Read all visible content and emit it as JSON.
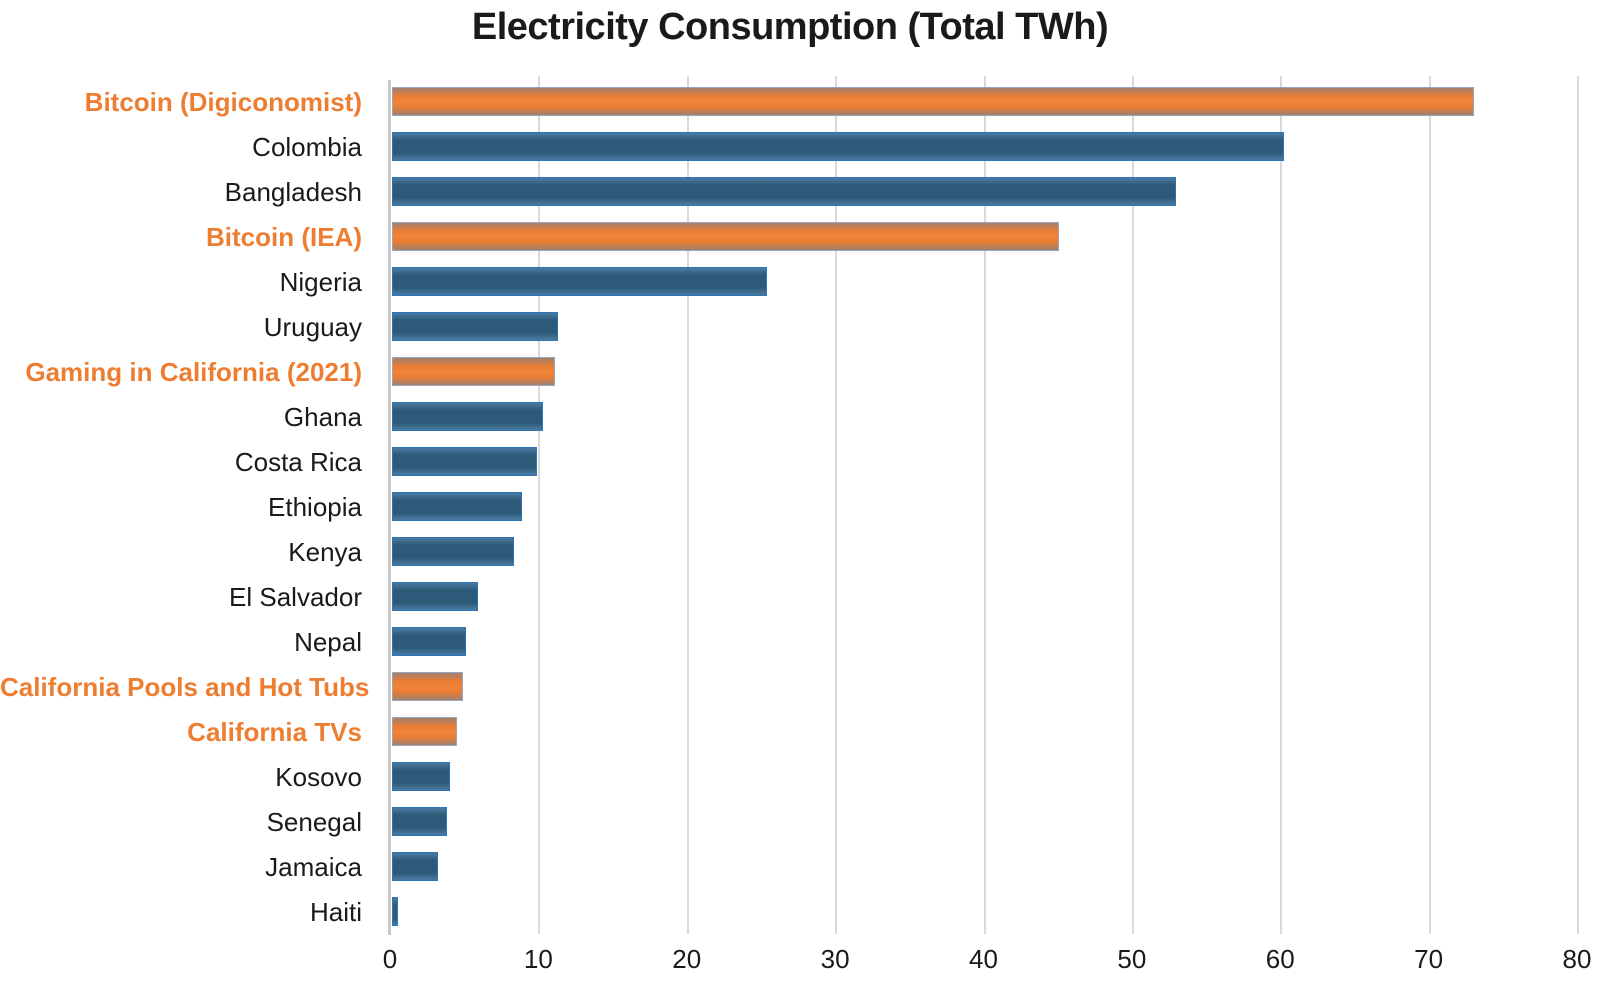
{
  "title": "Electricity Consumption (Total TWh)",
  "colors": {
    "bar_blue_fill": "#2E5B7A",
    "bar_blue_border": "#2E75B6",
    "bar_orange_fill": "#ED7D31",
    "bar_orange_border": "#98A6BA",
    "highlight_label": "#ED7D31",
    "text": "#1A1A1A",
    "gridline": "#D9D9D9",
    "axis_line": "#C8C8C8"
  },
  "chart_data": {
    "type": "bar",
    "orientation": "horizontal",
    "title": "Electricity Consumption (Total TWh)",
    "xlabel": "",
    "ylabel": "",
    "xlim": [
      0,
      80
    ],
    "x_ticks": [
      0,
      10,
      20,
      30,
      40,
      50,
      60,
      70,
      80
    ],
    "grid": true,
    "legend": "none",
    "series_note": "orange bars highlight Bitcoin/California items, blue bars are countries",
    "categories": [
      "Bitcoin (Digiconomist)",
      "Colombia",
      "Bangladesh",
      "Bitcoin (IEA)",
      "Nigeria",
      "Uruguay",
      "Gaming in California (2021)",
      "Ghana",
      "Costa Rica",
      "Ethiopia",
      "Kenya",
      "El Salvador",
      "Nepal",
      "California Pools and Hot Tubs",
      "California TVs",
      "Kosovo",
      "Senegal",
      "Jamaica",
      "Haiti"
    ],
    "values": [
      73,
      60.2,
      52.9,
      45,
      25.3,
      11.2,
      11,
      10.2,
      9.8,
      8.8,
      8.2,
      5.8,
      5,
      4.8,
      4.4,
      3.9,
      3.7,
      3.1,
      0.4
    ],
    "highlight": [
      true,
      false,
      false,
      true,
      false,
      false,
      true,
      false,
      false,
      false,
      false,
      false,
      false,
      true,
      true,
      false,
      false,
      false,
      false
    ]
  }
}
